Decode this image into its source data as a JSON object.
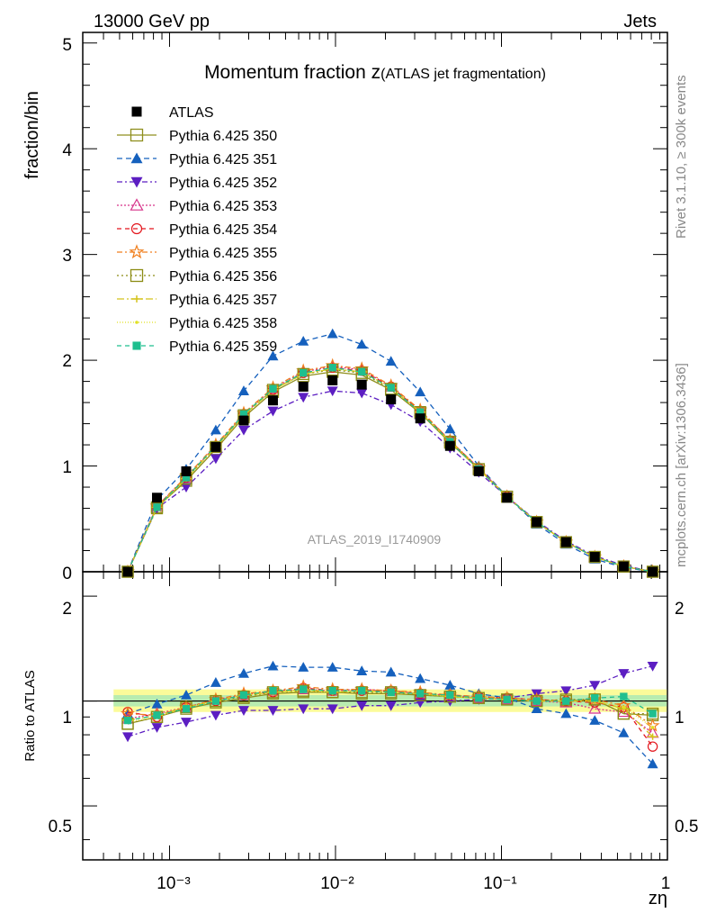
{
  "header": {
    "left": "13000 GeV pp",
    "right": "Jets",
    "side_top": "Rivet 3.1.10, ≥ 300k events",
    "side_bottom": "mcplots.cern.ch [arXiv:1306.3436]"
  },
  "main": {
    "title_main": "Momentum fraction z",
    "title_sub": "(ATLAS jet fragmentation)",
    "ylabel": "fraction/bin",
    "watermark": "ATLAS_2019_I1740909",
    "ytick_labels": [
      "0",
      "1",
      "2",
      "3",
      "4",
      "5"
    ]
  },
  "ratio": {
    "ylabel": "Ratio to ATLAS",
    "ytick_labels": [
      "0.5",
      "1",
      "2"
    ]
  },
  "xaxis": {
    "label": "zη",
    "tick_labels": [
      "10⁻³",
      "10⁻²",
      "10⁻¹",
      "1"
    ]
  },
  "chart_data": {
    "type": "scatter",
    "x_scale": "log",
    "xlim": [
      0.0003,
      1
    ],
    "ylim_main": [
      0,
      5.1
    ],
    "ylim_ratio": [
      0.35,
      2.35
    ],
    "ratio_log_scale": true,
    "x": [
      0.00056,
      0.00084,
      0.00126,
      0.0019,
      0.0028,
      0.0042,
      0.0064,
      0.0096,
      0.0144,
      0.0216,
      0.0324,
      0.049,
      0.073,
      0.108,
      0.163,
      0.245,
      0.365,
      0.545,
      0.815
    ],
    "data": {
      "name": "ATLAS",
      "values": [
        0.0,
        0.7,
        0.95,
        1.18,
        1.43,
        1.62,
        1.75,
        1.81,
        1.77,
        1.63,
        1.45,
        1.19,
        0.95,
        0.7,
        0.47,
        0.28,
        0.14,
        0.05,
        0.0
      ]
    },
    "series": [
      {
        "name": "Pythia 6.425 350",
        "color": "#8f8f1e",
        "dash": "",
        "marker": "square-open",
        "values": [
          0.0,
          0.61,
          0.86,
          1.16,
          1.46,
          1.7,
          1.85,
          1.89,
          1.86,
          1.72,
          1.5,
          1.22,
          0.97,
          0.71,
          0.47,
          0.28,
          0.14,
          0.05,
          0.0
        ],
        "ratio": [
          0.86,
          0.9,
          0.95,
          0.99,
          1.02,
          1.05,
          1.06,
          1.06,
          1.05,
          1.05,
          1.04,
          1.03,
          1.02,
          1.01,
          1.0,
          1.0,
          1.01,
          0.92,
          0.91
        ]
      },
      {
        "name": "Pythia 6.425 351",
        "color": "#1560bd",
        "dash": "6,4",
        "marker": "triangle-up",
        "values": [
          0.0,
          0.68,
          0.97,
          1.34,
          1.71,
          2.04,
          2.18,
          2.25,
          2.15,
          1.99,
          1.7,
          1.35,
          1.0,
          0.71,
          0.45,
          0.26,
          0.12,
          0.04,
          0.0
        ],
        "ratio": [
          0.92,
          0.98,
          1.04,
          1.13,
          1.2,
          1.26,
          1.25,
          1.25,
          1.22,
          1.21,
          1.16,
          1.11,
          1.05,
          1.02,
          0.95,
          0.92,
          0.88,
          0.81,
          0.66
        ]
      },
      {
        "name": "Pythia 6.425 352",
        "color": "#5c1ec2",
        "dash": "6,3,2,3",
        "marker": "triangle-down",
        "values": [
          0.0,
          0.6,
          0.8,
          1.07,
          1.34,
          1.52,
          1.65,
          1.71,
          1.69,
          1.58,
          1.42,
          1.17,
          0.94,
          0.71,
          0.48,
          0.29,
          0.15,
          0.06,
          0.0
        ],
        "ratio": [
          0.79,
          0.84,
          0.87,
          0.91,
          0.94,
          0.94,
          0.95,
          0.95,
          0.97,
          0.97,
          0.99,
          1.0,
          1.01,
          1.02,
          1.05,
          1.07,
          1.11,
          1.2,
          1.26
        ]
      },
      {
        "name": "Pythia 6.425 353",
        "color": "#d6338a",
        "dash": "2,2",
        "marker": "triangle-up-open",
        "values": [
          0.0,
          0.62,
          0.89,
          1.19,
          1.49,
          1.73,
          1.89,
          1.94,
          1.91,
          1.75,
          1.52,
          1.24,
          0.98,
          0.71,
          0.47,
          0.28,
          0.14,
          0.05,
          0.0
        ],
        "ratio": [
          0.89,
          0.92,
          0.96,
          1.01,
          1.04,
          1.07,
          1.08,
          1.07,
          1.08,
          1.07,
          1.05,
          1.04,
          1.02,
          1.01,
          1.0,
          0.99,
          0.95,
          0.93,
          0.81
        ]
      },
      {
        "name": "Pythia 6.425 354",
        "color": "#e3151c",
        "dash": "5,4",
        "marker": "circle-open",
        "values": [
          0.0,
          0.62,
          0.89,
          1.19,
          1.49,
          1.72,
          1.88,
          1.93,
          1.9,
          1.75,
          1.52,
          1.24,
          0.98,
          0.71,
          0.47,
          0.28,
          0.14,
          0.05,
          0.0
        ],
        "ratio": [
          0.93,
          0.9,
          0.96,
          1.0,
          1.04,
          1.06,
          1.09,
          1.07,
          1.07,
          1.07,
          1.05,
          1.04,
          1.03,
          1.02,
          1.01,
          1.0,
          0.99,
          0.96,
          0.74
        ]
      },
      {
        "name": "Pythia 6.425 355",
        "color": "#f07f1e",
        "dash": "6,3,2,3",
        "marker": "star-open",
        "values": [
          0.0,
          0.62,
          0.9,
          1.2,
          1.5,
          1.74,
          1.9,
          1.95,
          1.92,
          1.76,
          1.53,
          1.24,
          0.98,
          0.71,
          0.47,
          0.28,
          0.14,
          0.05,
          0.0
        ],
        "ratio": [
          0.92,
          0.91,
          0.96,
          1.01,
          1.05,
          1.07,
          1.1,
          1.08,
          1.08,
          1.07,
          1.06,
          1.04,
          1.03,
          1.02,
          1.01,
          1.0,
          1.01,
          0.97,
          0.85
        ]
      },
      {
        "name": "Pythia 6.425 356",
        "color": "#8c8c14",
        "dash": "2,3",
        "marker": "square-open",
        "values": [
          0.0,
          0.6,
          0.88,
          1.18,
          1.48,
          1.72,
          1.87,
          1.91,
          1.88,
          1.73,
          1.51,
          1.23,
          0.97,
          0.71,
          0.47,
          0.28,
          0.14,
          0.05,
          0.0
        ],
        "ratio": [
          0.86,
          0.9,
          0.96,
          1.0,
          1.03,
          1.06,
          1.07,
          1.06,
          1.06,
          1.06,
          1.04,
          1.03,
          1.02,
          1.01,
          1.0,
          1.01,
          1.01,
          0.92,
          0.92
        ]
      },
      {
        "name": "Pythia 6.425 357",
        "color": "#d4c21a",
        "dash": "8,3,2,3",
        "marker": "cross",
        "values": [
          0.0,
          0.61,
          0.88,
          1.18,
          1.48,
          1.72,
          1.87,
          1.92,
          1.89,
          1.74,
          1.51,
          1.23,
          0.97,
          0.71,
          0.47,
          0.28,
          0.14,
          0.05,
          0.0
        ],
        "ratio": [
          0.88,
          0.91,
          0.96,
          1.0,
          1.04,
          1.06,
          1.08,
          1.06,
          1.07,
          1.06,
          1.05,
          1.03,
          1.02,
          1.01,
          1.0,
          1.0,
          1.0,
          0.95,
          0.79
        ]
      },
      {
        "name": "Pythia 6.425 358",
        "color": "#e0e020",
        "dash": "1,2",
        "marker": "dot",
        "values": [
          0.0,
          0.6,
          0.88,
          1.18,
          1.48,
          1.72,
          1.87,
          1.92,
          1.89,
          1.74,
          1.51,
          1.23,
          0.97,
          0.71,
          0.47,
          0.28,
          0.14,
          0.05,
          0.0
        ],
        "ratio": [
          0.87,
          0.9,
          0.96,
          1.0,
          1.04,
          1.06,
          1.07,
          1.06,
          1.07,
          1.06,
          1.05,
          1.03,
          1.02,
          1.01,
          1.0,
          1.0,
          1.0,
          0.96,
          0.84
        ]
      },
      {
        "name": "Pythia 6.425 359",
        "color": "#1fbf8f",
        "dash": "5,4",
        "marker": "square-filled",
        "values": [
          0.0,
          0.61,
          0.89,
          1.19,
          1.49,
          1.73,
          1.88,
          1.93,
          1.89,
          1.74,
          1.51,
          1.23,
          0.97,
          0.71,
          0.47,
          0.28,
          0.14,
          0.05,
          0.0
        ],
        "ratio": [
          0.88,
          0.91,
          0.95,
          1.0,
          1.04,
          1.07,
          1.08,
          1.07,
          1.07,
          1.06,
          1.05,
          1.04,
          1.02,
          1.01,
          1.0,
          1.0,
          1.02,
          1.03,
          0.92
        ]
      }
    ]
  }
}
